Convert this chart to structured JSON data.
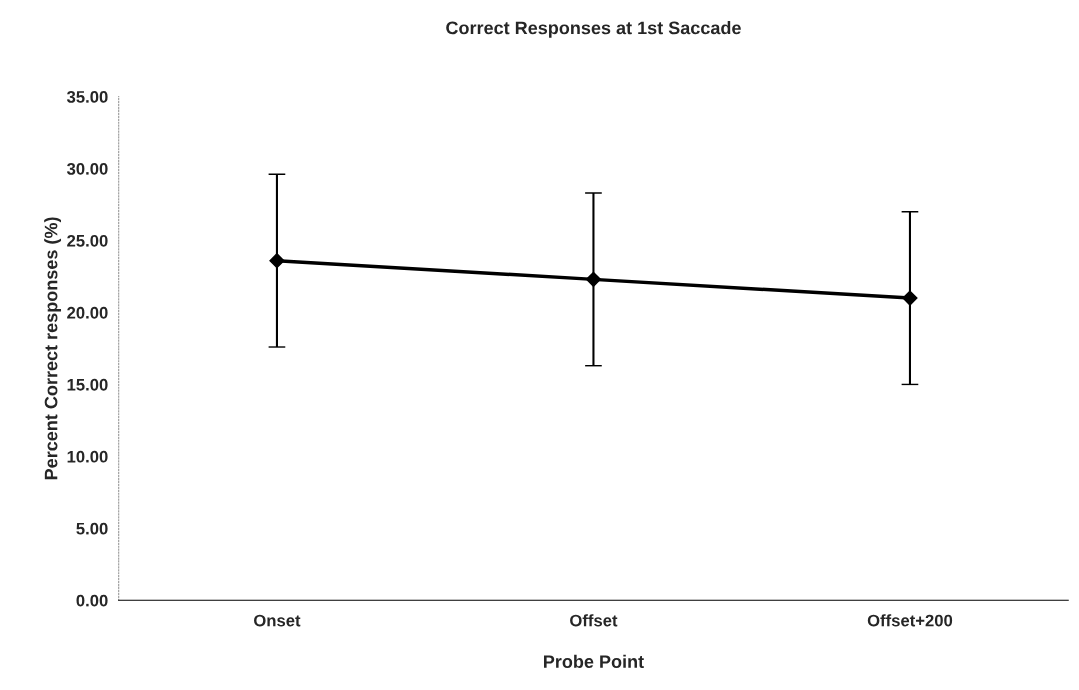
{
  "chart_data": {
    "type": "line",
    "title": "Correct Responses at 1st Saccade",
    "xlabel": "Probe Point",
    "ylabel": "Percent Correct responses (%)",
    "categories": [
      "Onset",
      "Offset",
      "Offset+200"
    ],
    "series": [
      {
        "color": "#000000",
        "values": [
          23.6,
          22.3,
          21.0
        ],
        "errors": [
          6.0,
          6.0,
          6.0
        ]
      }
    ],
    "ylim": [
      0,
      35
    ],
    "yticks": [
      {
        "value": 0,
        "label": "0.00"
      },
      {
        "value": 5,
        "label": "5.00"
      },
      {
        "value": 10,
        "label": "10.00"
      },
      {
        "value": 15,
        "label": "15.00"
      },
      {
        "value": 20,
        "label": "20.00"
      },
      {
        "value": 25,
        "label": "25.00"
      },
      {
        "value": 30,
        "label": "30.00"
      },
      {
        "value": 35,
        "label": "35.00"
      }
    ],
    "grid": false,
    "legend": false,
    "marker": "diamond",
    "line_style": "solid"
  }
}
